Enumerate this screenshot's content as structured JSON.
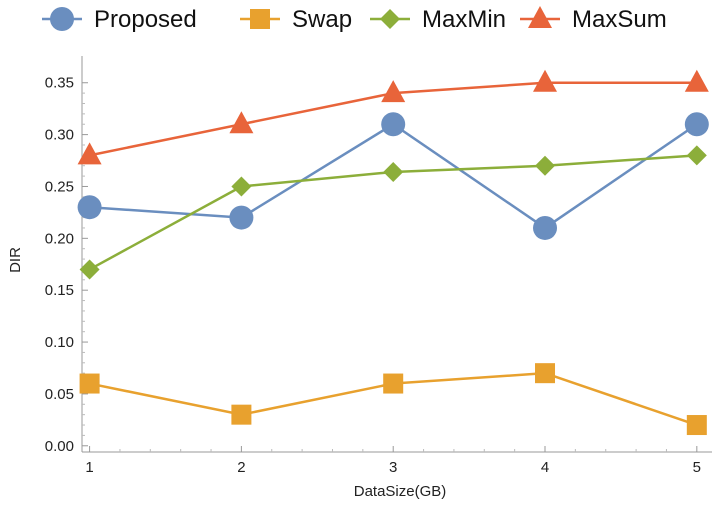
{
  "chart_data": {
    "type": "line",
    "xlabel": "DataSize(GB)",
    "ylabel": "DIR",
    "x": [
      1,
      2,
      3,
      4,
      5
    ],
    "xlim": [
      0.95,
      5.1
    ],
    "ylim": [
      -0.006,
      0.37
    ],
    "xticks": [
      "1",
      "2",
      "3",
      "4",
      "5"
    ],
    "yticks": [
      "0.00",
      "0.05",
      "0.10",
      "0.15",
      "0.20",
      "0.25",
      "0.30",
      "0.35"
    ],
    "grid": false,
    "legend_position": "top",
    "series": [
      {
        "name": "Proposed",
        "marker": "circle",
        "color": "#6a8ebf",
        "values": [
          0.23,
          0.22,
          0.31,
          0.21,
          0.31
        ]
      },
      {
        "name": "Swap",
        "marker": "square",
        "color": "#e8a12e",
        "values": [
          0.06,
          0.03,
          0.06,
          0.07,
          0.02
        ]
      },
      {
        "name": "MaxMin",
        "marker": "diamond",
        "color": "#8cae3a",
        "values": [
          0.17,
          0.25,
          0.264,
          0.27,
          0.28
        ]
      },
      {
        "name": "MaxSum",
        "marker": "triangle",
        "color": "#e8643a",
        "values": [
          0.28,
          0.31,
          0.34,
          0.35,
          0.35
        ]
      }
    ]
  }
}
